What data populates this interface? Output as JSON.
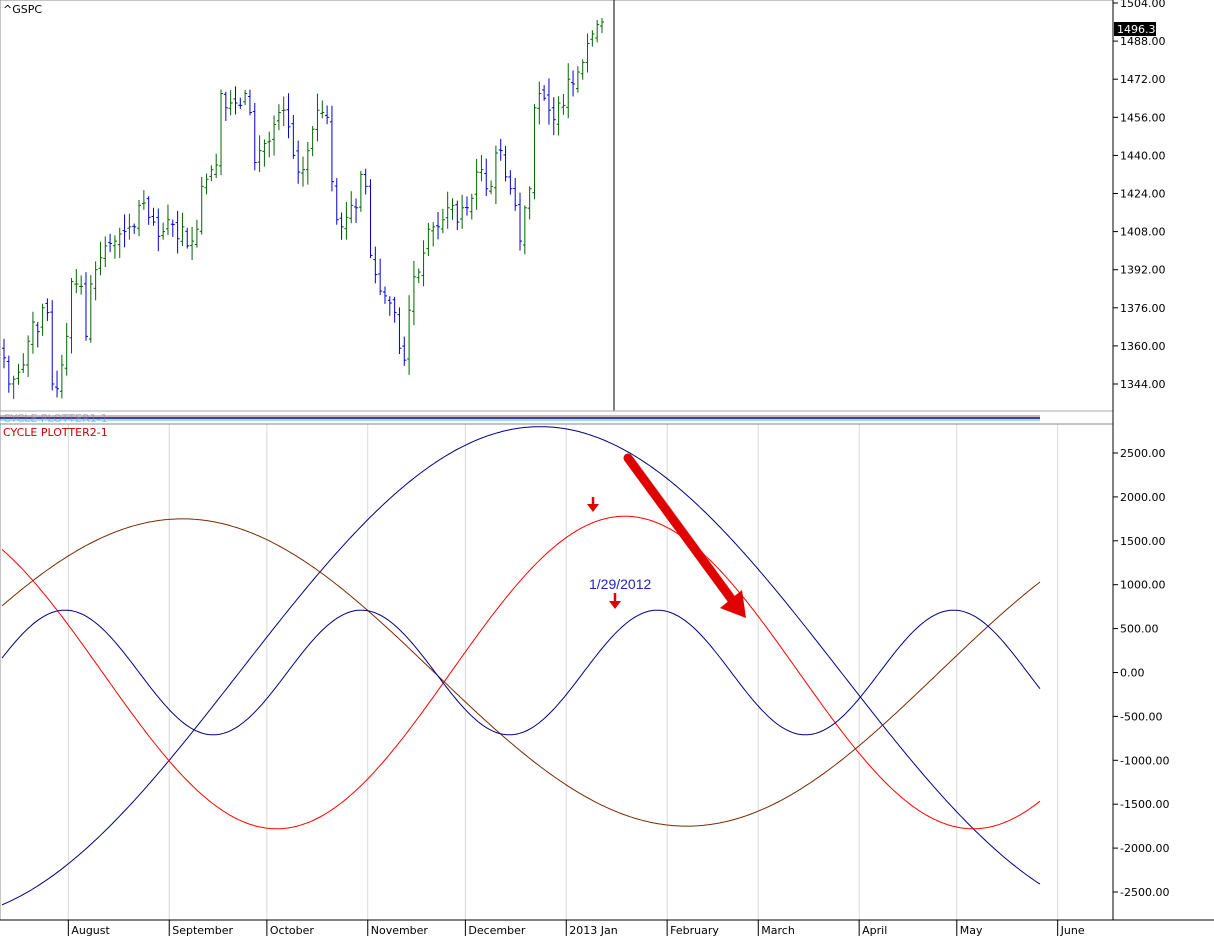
{
  "colors": {
    "up_bar": "#006400",
    "down_bar": "#0000cc",
    "cycle_blue": "#000080",
    "cycle_red": "#ff0000",
    "cycle_brown": "#7a2a00",
    "annot_blue": "#2222cc",
    "arrow_red": "#e00000",
    "gridline": "#d8d8d8"
  },
  "price_panel": {
    "ticker": "^GSPC",
    "last_price": "1496.34",
    "y_ticks": [
      "1504.00",
      "1488.00",
      "1472.00",
      "1456.00",
      "1440.00",
      "1424.00",
      "1408.00",
      "1392.00",
      "1376.00",
      "1360.00",
      "1344.00"
    ],
    "current_bar_index": 100
  },
  "indicator_panel": {
    "hidden_title": "CYCLE PLOTTER1-1",
    "title": "CYCLE PLOTTER2-1",
    "y_ticks": [
      "2500.00",
      "2000.00",
      "1500.00",
      "1000.00",
      "500.00",
      "0.00",
      "-500.00",
      "-1000.00",
      "-1500.00",
      "-2000.00",
      "-2500.00"
    ],
    "annotation_date": "1/29/2012",
    "arrow_icon": "down-arrow-icon",
    "trend_arrow_icon": "trend-arrow-icon"
  },
  "x_axis": {
    "months": [
      "August",
      "September",
      "October",
      "November",
      "December",
      "2013 Jan",
      "February",
      "March",
      "April",
      "May",
      "June"
    ]
  },
  "chart_data": {
    "type": "line",
    "title": "^GSPC",
    "price_bars": {
      "type": "ohlc",
      "closes": [
        1355,
        1344,
        1346,
        1349,
        1352,
        1362,
        1370,
        1366,
        1376,
        1374,
        1344,
        1342,
        1352,
        1364,
        1387,
        1386,
        1385,
        1364,
        1386,
        1392,
        1397,
        1402,
        1403,
        1404,
        1407,
        1408,
        1410,
        1410,
        1419,
        1420,
        1414,
        1412,
        1406,
        1408,
        1413,
        1411,
        1405,
        1410,
        1402,
        1404,
        1409,
        1427,
        1430,
        1434,
        1436,
        1466,
        1460,
        1462,
        1462,
        1461,
        1466,
        1458,
        1437,
        1442,
        1445,
        1446,
        1453,
        1458,
        1459,
        1452,
        1440,
        1433,
        1434,
        1442,
        1451,
        1459,
        1458,
        1456,
        1429,
        1413,
        1410,
        1414,
        1419,
        1418,
        1432,
        1427,
        1398,
        1390,
        1383,
        1381,
        1378,
        1374,
        1359,
        1354,
        1375,
        1389,
        1391,
        1399,
        1409,
        1410,
        1410,
        1413,
        1418,
        1419,
        1412,
        1418,
        1418,
        1422,
        1433,
        1434,
        1426,
        1427,
        1441,
        1442,
        1431,
        1426,
        1419,
        1404,
        1418,
        1426,
        1460,
        1466,
        1464,
        1459,
        1455,
        1462,
        1461,
        1472,
        1470,
        1475,
        1479,
        1487,
        1491,
        1495,
        1496
      ],
      "ylim": [
        1330,
        1510
      ]
    },
    "cycles": {
      "ylim": [
        -2850,
        2850
      ],
      "series": [
        {
          "name": "",
          "color": "blue-large",
          "amplitude": 2800,
          "period_days": 370,
          "peak_date": "2012-12-24"
        },
        {
          "name": "",
          "color": "red",
          "amplitude": 1780,
          "period_days": 214,
          "peak_date": "2013-01-19"
        },
        {
          "name": "",
          "color": "brown",
          "amplitude": 1750,
          "period_days": 310,
          "peak_date": "2012-09-05"
        },
        {
          "name": "",
          "color": "blue-small",
          "amplitude": 710,
          "period_days": 91,
          "peak_date": "2013-01-29"
        }
      ]
    },
    "x_range": [
      "2012-07-11",
      "2013-06-18"
    ]
  }
}
